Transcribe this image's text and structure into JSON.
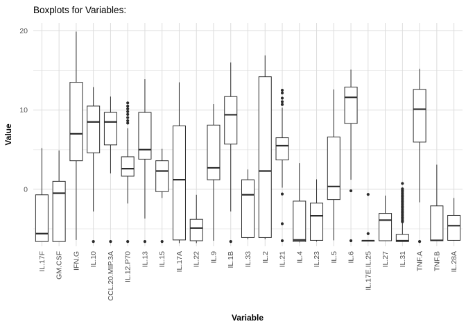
{
  "chart_data": {
    "type": "boxplot",
    "title": "Boxplots for Variables:",
    "xlabel": "Variable",
    "ylabel": "Value",
    "ylim": [
      -7.2,
      21
    ],
    "y_major_ticks": [
      0,
      10,
      20
    ],
    "y_minor_ticks": [
      -5,
      5,
      15
    ],
    "grid": "on",
    "legend": "none",
    "panel_background": "#ffffff",
    "grid_major_color": "#dcdcdc",
    "grid_minor_color": "#ededed",
    "box_stroke_color": "#2b2b2b",
    "box_fill_color": "#ffffff",
    "categories": [
      "IL.17F",
      "GM.CSF",
      "IFN.G",
      "IL.10",
      "CCL.20.MIP.3A",
      "IL.12.P70",
      "IL.13",
      "IL.15",
      "IL.17A",
      "IL.22",
      "IL.9",
      "IL.1B",
      "IL.33",
      "IL.2",
      "IL.21",
      "IL.4",
      "IL.23",
      "IL.5",
      "IL.6",
      "IL.17E.IL.25",
      "IL.27",
      "IL.31",
      "TNF.A",
      "TNF.B",
      "IL.28A"
    ],
    "series": [
      {
        "name": "IL.17F",
        "whisker_low": -6.6,
        "q1": -6.6,
        "median": -5.6,
        "q3": -0.7,
        "whisker_high": 5.2,
        "outliers": []
      },
      {
        "name": "GM.CSF",
        "whisker_low": -6.6,
        "q1": -6.6,
        "median": -0.5,
        "q3": 1.0,
        "whisker_high": 4.9,
        "outliers": []
      },
      {
        "name": "IFN.G",
        "whisker_low": -6.4,
        "q1": 3.6,
        "median": 7.0,
        "q3": 13.5,
        "whisker_high": 19.9,
        "outliers": []
      },
      {
        "name": "IL.10",
        "whisker_low": -2.8,
        "q1": 4.6,
        "median": 8.5,
        "q3": 10.5,
        "whisker_high": 12.9,
        "outliers": [
          -6.6
        ]
      },
      {
        "name": "CCL.20.MIP.3A",
        "whisker_low": 2.0,
        "q1": 5.6,
        "median": 8.5,
        "q3": 9.7,
        "whisker_high": 11.7,
        "outliers": [
          -6.6
        ]
      },
      {
        "name": "IL.12.P70",
        "whisker_low": -1.8,
        "q1": 1.65,
        "median": 2.6,
        "q3": 4.1,
        "whisker_high": 7.7,
        "outliers": [
          10.9,
          10.5,
          10.15,
          9.8,
          9.45,
          9.05,
          8.65,
          8.35,
          -6.6
        ]
      },
      {
        "name": "IL.13",
        "whisker_low": -3.7,
        "q1": 3.8,
        "median": 5.0,
        "q3": 9.7,
        "whisker_high": 13.9,
        "outliers": [
          -6.6
        ]
      },
      {
        "name": "IL.15",
        "whisker_low": -1.1,
        "q1": -0.3,
        "median": 2.3,
        "q3": 3.6,
        "whisker_high": 5.1,
        "outliers": [
          -6.6
        ]
      },
      {
        "name": "IL.17A",
        "whisker_low": -6.8,
        "q1": -6.4,
        "median": 1.2,
        "q3": 8.0,
        "whisker_high": 13.5,
        "outliers": []
      },
      {
        "name": "IL.22",
        "whisker_low": -6.8,
        "q1": -6.5,
        "median": -4.9,
        "q3": -3.8,
        "whisker_high": -0.7,
        "outliers": []
      },
      {
        "name": "IL.9",
        "whisker_low": -6.5,
        "q1": 1.2,
        "median": 2.7,
        "q3": 8.1,
        "whisker_high": 10.75,
        "outliers": []
      },
      {
        "name": "IL.1B",
        "whisker_low": -2.8,
        "q1": 5.7,
        "median": 9.4,
        "q3": 11.7,
        "whisker_high": 16.0,
        "outliers": [
          -6.6
        ]
      },
      {
        "name": "IL.33",
        "whisker_low": -6.3,
        "q1": -6.1,
        "median": -0.7,
        "q3": 1.2,
        "whisker_high": 2.5,
        "outliers": []
      },
      {
        "name": "IL.2",
        "whisker_low": -6.3,
        "q1": -6.1,
        "median": 2.3,
        "q3": 14.2,
        "whisker_high": 16.9,
        "outliers": []
      },
      {
        "name": "IL.21",
        "whisker_low": 0.2,
        "q1": 3.7,
        "median": 5.5,
        "q3": 6.5,
        "whisker_high": 10.3,
        "outliers": [
          12.5,
          12.15,
          11.5,
          11.05,
          10.7,
          -0.6,
          -4.35,
          -6.5
        ]
      },
      {
        "name": "IL.4",
        "whisker_low": -6.7,
        "q1": -6.6,
        "median": -6.4,
        "q3": -1.5,
        "whisker_high": 3.3,
        "outliers": []
      },
      {
        "name": "IL.23",
        "whisker_low": -6.6,
        "q1": -6.45,
        "median": -3.35,
        "q3": -1.75,
        "whisker_high": 1.25,
        "outliers": []
      },
      {
        "name": "IL.5",
        "whisker_low": -6.45,
        "q1": -1.3,
        "median": 0.35,
        "q3": 6.6,
        "whisker_high": 12.6,
        "outliers": []
      },
      {
        "name": "IL.6",
        "whisker_low": 1.2,
        "q1": 8.3,
        "median": 11.6,
        "q3": 12.9,
        "whisker_high": 15.1,
        "outliers": [
          -0.2,
          -6.5
        ]
      },
      {
        "name": "IL.17E.IL.25",
        "whisker_low": -6.5,
        "q1": -6.5,
        "median": -6.5,
        "q3": -6.5,
        "whisker_high": -6.5,
        "outliers": [
          -0.65,
          -5.6
        ]
      },
      {
        "name": "IL.27",
        "whisker_low": -6.5,
        "q1": -6.5,
        "median": -3.9,
        "q3": -3.05,
        "whisker_high": -0.8,
        "outliers": []
      },
      {
        "name": "IL.31",
        "whisker_low": -6.6,
        "q1": -6.6,
        "median": -6.5,
        "q3": -5.7,
        "whisker_high": -4.0,
        "outliers": [
          0.73,
          0.05,
          -0.15,
          -0.35,
          -0.55,
          -0.75,
          -0.95,
          -1.15,
          -1.35,
          -1.55,
          -1.75,
          -1.95,
          -2.15,
          -2.35,
          -2.55,
          -2.75,
          -2.95,
          -3.15,
          -3.35,
          -3.55,
          -3.75,
          -3.95,
          -4.1
        ]
      },
      {
        "name": "TNF.A",
        "whisker_low": -1.65,
        "q1": 5.95,
        "median": 10.1,
        "q3": 12.6,
        "whisker_high": 15.2,
        "outliers": [
          -6.6
        ]
      },
      {
        "name": "TNF.B",
        "whisker_low": -6.5,
        "q1": -6.5,
        "median": -6.45,
        "q3": -2.1,
        "whisker_high": 3.1,
        "outliers": []
      },
      {
        "name": "IL.28A",
        "whisker_low": -6.5,
        "q1": -6.45,
        "median": -4.6,
        "q3": -3.3,
        "whisker_high": -1.1,
        "outliers": []
      }
    ]
  }
}
